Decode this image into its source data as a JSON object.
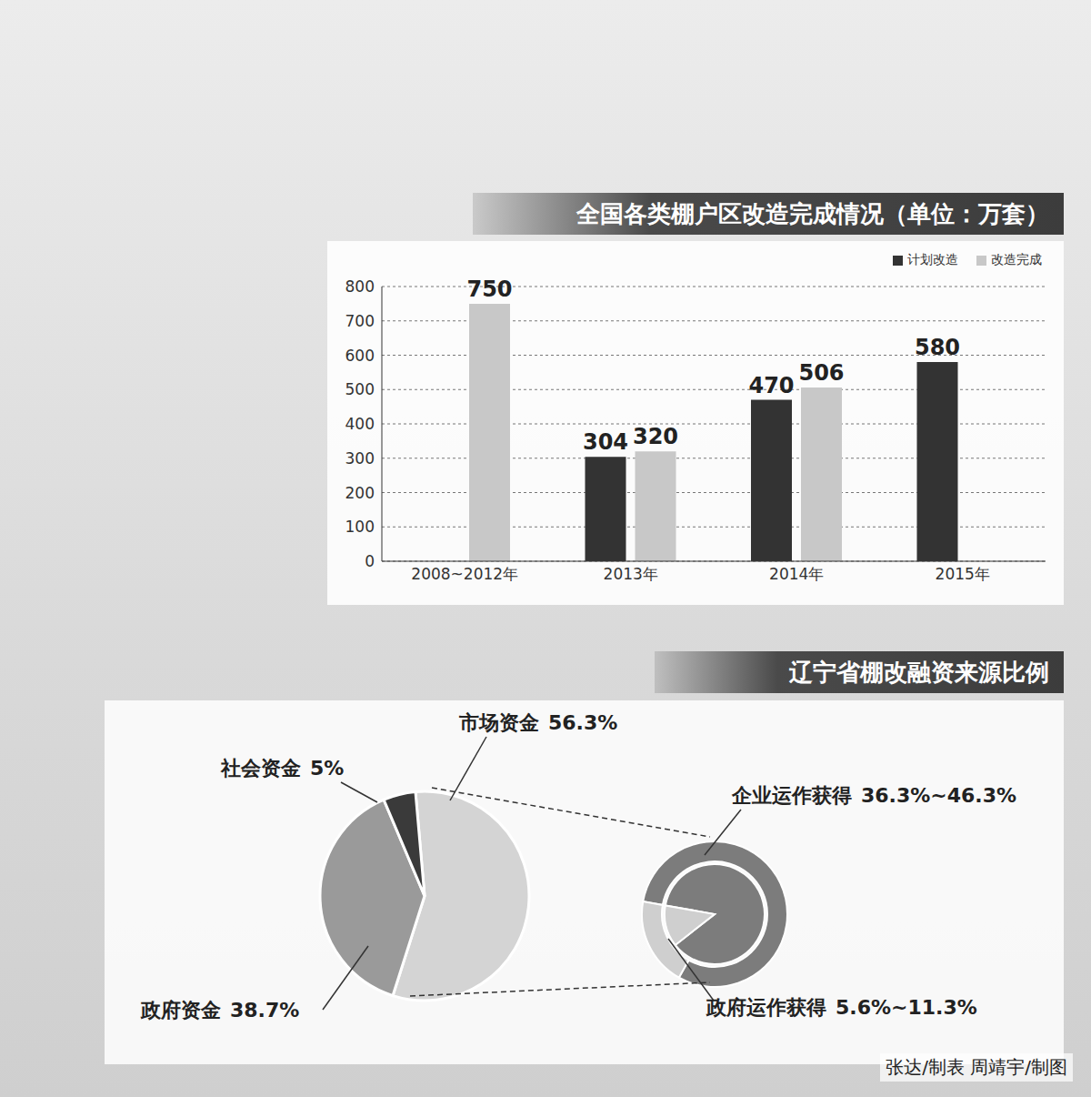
{
  "chart_data": [
    {
      "type": "bar",
      "title": "全国各类棚户区改造完成情况（单位：万套）",
      "categories": [
        "2008~2012年",
        "2013年",
        "2014年",
        "2015年"
      ],
      "series": [
        {
          "name": "计划改造",
          "color": "#333333",
          "values": [
            null,
            304,
            470,
            580
          ]
        },
        {
          "name": "改造完成",
          "color": "#c8c8c8",
          "values": [
            750,
            320,
            506,
            null
          ]
        }
      ],
      "ylim": [
        0,
        800
      ],
      "yticks": [
        0,
        100,
        200,
        300,
        400,
        500,
        600,
        700,
        800
      ],
      "grid": true,
      "legend": "upper right",
      "data_labels": true
    },
    {
      "type": "pie",
      "title": "辽宁省棚改融资来源比例",
      "categories": [
        "市场资金",
        "政府资金",
        "社会资金"
      ],
      "values": [
        56.3,
        38.7,
        5
      ],
      "value_labels": [
        "56.3%",
        "38.7%",
        "5%"
      ],
      "colors": [
        "#d4d4d4",
        "#9a9a9a",
        "#3a3a3a"
      ],
      "data_labels": true
    },
    {
      "type": "pie",
      "categories": [
        "企业运作获得",
        "政府运作获得"
      ],
      "low": [
        36.3,
        5.6
      ],
      "high": [
        46.3,
        11.3
      ],
      "value_labels": [
        "36.3%~46.3%",
        "5.6%~11.3%"
      ],
      "colors": [
        "#7c7c7c",
        "#cfcfcf"
      ],
      "data_labels": true
    }
  ],
  "credit": "张达/制表 周靖宇/制图"
}
